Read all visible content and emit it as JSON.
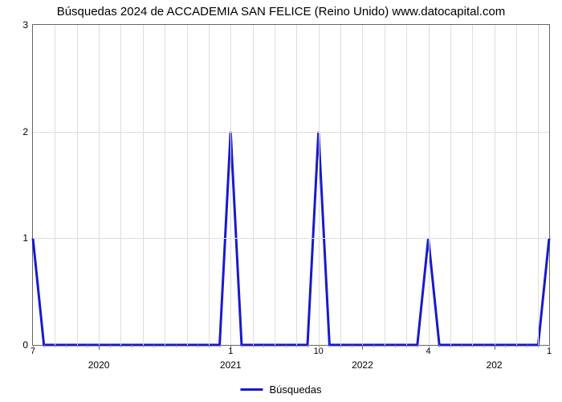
{
  "chart": {
    "type": "line",
    "title": "Búsquedas 2024 de ACCADEMIA SAN FELICE (Reino Unido) www.datocapital.com",
    "title_fontsize": 15,
    "title_color": "#000000",
    "background_color": "#ffffff",
    "plot_border_color": "#666666",
    "grid_color": "#dddddd",
    "line_color": "#1919cc",
    "line_width": 3,
    "ylim": [
      0,
      3
    ],
    "ytick_step": 1,
    "yticks": [
      0,
      1,
      2,
      3
    ],
    "x_axis": {
      "n": 48,
      "major_ticks": [
        {
          "i": 6,
          "label": "2020"
        },
        {
          "i": 18,
          "label": "2021"
        },
        {
          "i": 30,
          "label": "2022"
        },
        {
          "i": 42,
          "label": "202"
        }
      ],
      "minor_ticks_every": 1,
      "grid_every": 2,
      "value_labels": [
        {
          "i": 0,
          "text": "7"
        },
        {
          "i": 18,
          "text": "1"
        },
        {
          "i": 26,
          "text": "10"
        },
        {
          "i": 36,
          "text": "4"
        },
        {
          "i": 47,
          "text": "1"
        }
      ]
    },
    "series": {
      "name": "Búsquedas",
      "points": [
        {
          "i": 0,
          "y": 1
        },
        {
          "i": 1,
          "y": 0
        },
        {
          "i": 2,
          "y": 0
        },
        {
          "i": 3,
          "y": 0
        },
        {
          "i": 4,
          "y": 0
        },
        {
          "i": 5,
          "y": 0
        },
        {
          "i": 6,
          "y": 0
        },
        {
          "i": 7,
          "y": 0
        },
        {
          "i": 8,
          "y": 0
        },
        {
          "i": 9,
          "y": 0
        },
        {
          "i": 10,
          "y": 0
        },
        {
          "i": 11,
          "y": 0
        },
        {
          "i": 12,
          "y": 0
        },
        {
          "i": 13,
          "y": 0
        },
        {
          "i": 14,
          "y": 0
        },
        {
          "i": 15,
          "y": 0
        },
        {
          "i": 16,
          "y": 0
        },
        {
          "i": 17,
          "y": 0
        },
        {
          "i": 18,
          "y": 2
        },
        {
          "i": 19,
          "y": 0
        },
        {
          "i": 20,
          "y": 0
        },
        {
          "i": 21,
          "y": 0
        },
        {
          "i": 22,
          "y": 0
        },
        {
          "i": 23,
          "y": 0
        },
        {
          "i": 24,
          "y": 0
        },
        {
          "i": 25,
          "y": 0
        },
        {
          "i": 26,
          "y": 2
        },
        {
          "i": 27,
          "y": 0
        },
        {
          "i": 28,
          "y": 0
        },
        {
          "i": 29,
          "y": 0
        },
        {
          "i": 30,
          "y": 0
        },
        {
          "i": 31,
          "y": 0
        },
        {
          "i": 32,
          "y": 0
        },
        {
          "i": 33,
          "y": 0
        },
        {
          "i": 34,
          "y": 0
        },
        {
          "i": 35,
          "y": 0
        },
        {
          "i": 36,
          "y": 1
        },
        {
          "i": 37,
          "y": 0
        },
        {
          "i": 38,
          "y": 0
        },
        {
          "i": 39,
          "y": 0
        },
        {
          "i": 40,
          "y": 0
        },
        {
          "i": 41,
          "y": 0
        },
        {
          "i": 42,
          "y": 0
        },
        {
          "i": 43,
          "y": 0
        },
        {
          "i": 44,
          "y": 0
        },
        {
          "i": 45,
          "y": 0
        },
        {
          "i": 46,
          "y": 0
        },
        {
          "i": 47,
          "y": 1
        }
      ]
    },
    "legend": {
      "label": "Búsquedas",
      "position": "bottom-center",
      "swatch_color": "#1919cc"
    }
  }
}
